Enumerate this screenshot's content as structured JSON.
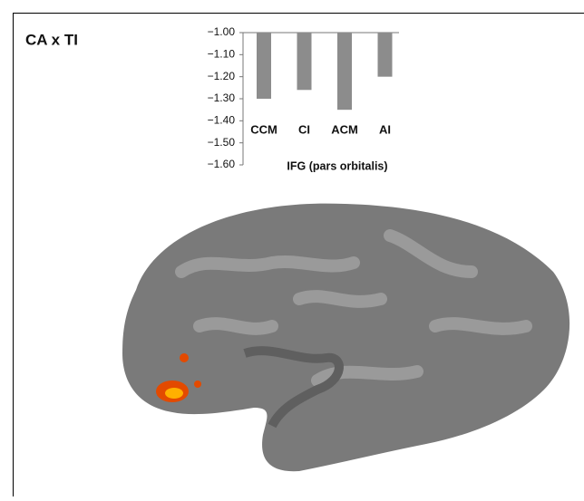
{
  "chart_data": {
    "type": "bar",
    "title": "CA x TI",
    "x_label": "IFG (pars orbitalis)",
    "categories": [
      "CCM",
      "CI",
      "ACM",
      "AI"
    ],
    "values": [
      -1.3,
      -1.26,
      -1.35,
      -1.2
    ],
    "color": "#8c8c8c",
    "ylim": [
      -1.6,
      -1.0
    ],
    "yticks": [
      {
        "value": -1.0,
        "label": "−1.00"
      },
      {
        "value": -1.1,
        "label": "−1.10"
      },
      {
        "value": -1.2,
        "label": "−1.20"
      },
      {
        "value": -1.3,
        "label": "−1.30"
      },
      {
        "value": -1.4,
        "label": "−1.40"
      },
      {
        "value": -1.5,
        "label": "−1.50"
      },
      {
        "value": -1.6,
        "label": "−1.60"
      }
    ],
    "grid": false
  }
}
